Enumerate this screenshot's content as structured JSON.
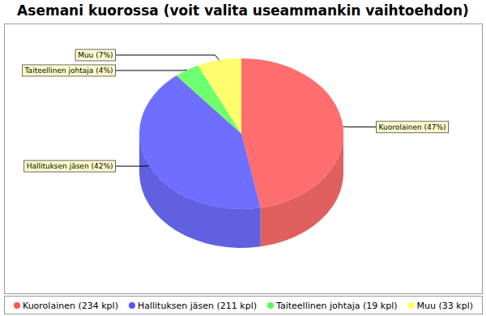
{
  "chart_data": {
    "type": "pie",
    "title": "Asemani kuorossa (voit valita useammankin vaihtoehdon)",
    "categories": [
      "Kuorolainen",
      "Hallituksen jäsen",
      "Taiteellinen johtaja",
      "Muu"
    ],
    "values": [
      47,
      42,
      4,
      7
    ],
    "value_labels": [
      "47%",
      "42%",
      "4%",
      "7%"
    ],
    "counts": [
      234,
      211,
      19,
      33
    ],
    "count_unit": "kpl",
    "colors": [
      "#ff5555",
      "#5555ff",
      "#55ff55",
      "#ffff55"
    ],
    "data_labels": true,
    "legend": "bottom"
  }
}
